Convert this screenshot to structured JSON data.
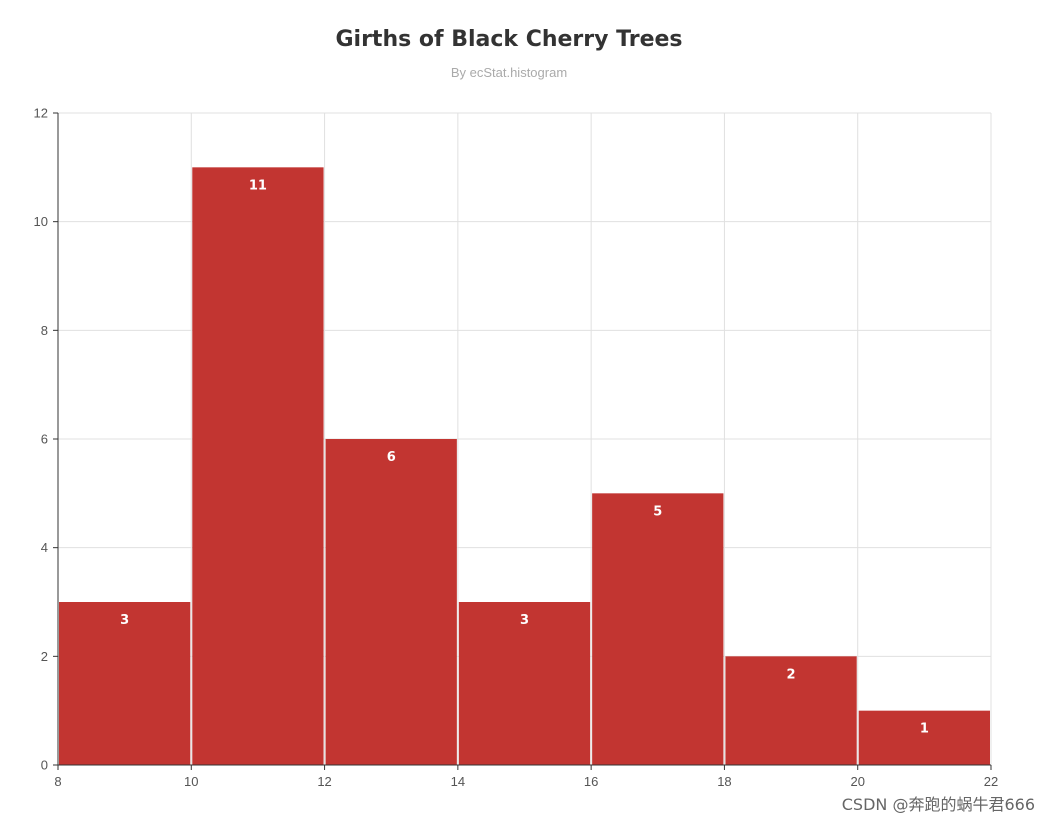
{
  "chart_data": {
    "type": "bar",
    "title": "Girths of Black Cherry Trees",
    "subtitle": "By ecStat.histogram",
    "xlabel": "",
    "ylabel": "",
    "xlim": [
      8,
      22
    ],
    "ylim": [
      0,
      12
    ],
    "x_ticks": [
      "8",
      "10",
      "12",
      "14",
      "16",
      "18",
      "20",
      "22"
    ],
    "y_ticks": [
      "0",
      "2",
      "4",
      "6",
      "8",
      "10",
      "12"
    ],
    "bins": [
      {
        "x0": 8,
        "x1": 10,
        "value": 3
      },
      {
        "x0": 10,
        "x1": 12,
        "value": 11
      },
      {
        "x0": 12,
        "x1": 14,
        "value": 6
      },
      {
        "x0": 14,
        "x1": 16,
        "value": 3
      },
      {
        "x0": 16,
        "x1": 18,
        "value": 5
      },
      {
        "x0": 18,
        "x1": 20,
        "value": 2
      },
      {
        "x0": 20,
        "x1": 22,
        "value": 1
      }
    ],
    "grid": true,
    "bar_color": "#c23531",
    "grid_color": "#e0e0e0",
    "axis_color": "#333333"
  },
  "watermark": "CSDN @奔跑的蜗牛君666"
}
